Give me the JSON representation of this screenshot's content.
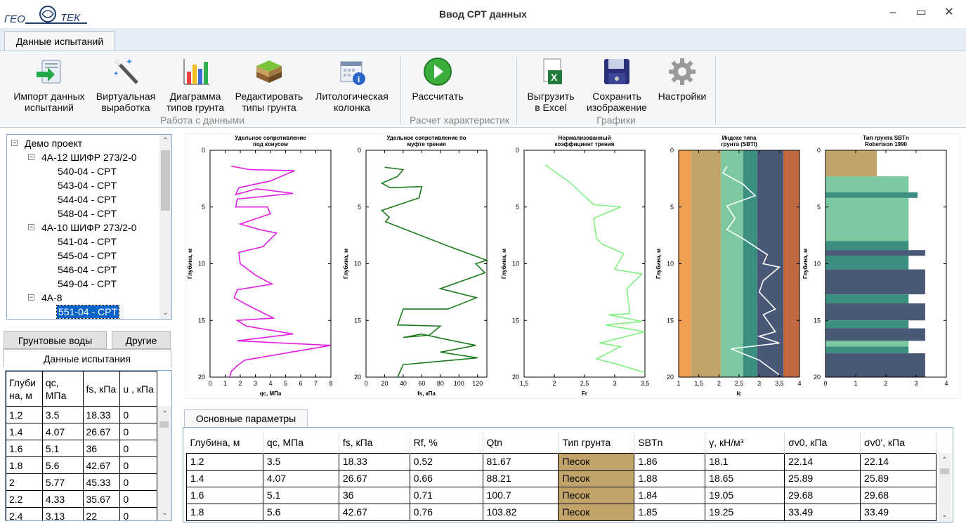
{
  "window": {
    "title": "Ввод CPT данных",
    "logo_text": "ГЕО ТЕК",
    "minimize": "–",
    "maximize": "▭",
    "close": "✕"
  },
  "ribbon": {
    "tab": "Данные испытаний",
    "groups": [
      {
        "label": "Работа с данными"
      },
      {
        "label": "Расчет характеристик"
      },
      {
        "label": "Графики"
      }
    ],
    "buttons": [
      {
        "line1": "Импорт данных",
        "line2": "испытаний",
        "icon": "import-icon"
      },
      {
        "line1": "Виртуальная",
        "line2": "выработка",
        "icon": "magic-wand-icon"
      },
      {
        "line1": "Диаграмма",
        "line2": "типов грунта",
        "icon": "chart-icon"
      },
      {
        "line1": "Редактировать",
        "line2": "типы грунта",
        "icon": "soil-layers-icon"
      },
      {
        "line1": "Литологическая",
        "line2": "колонка",
        "icon": "calendar-info-icon"
      },
      {
        "line1": "Рассчитать",
        "line2": "",
        "icon": "play-icon"
      },
      {
        "line1": "Выгрузить",
        "line2": "в Excel",
        "icon": "excel-icon"
      },
      {
        "line1": "Сохранить",
        "line2": "изображение",
        "icon": "floppy-disk-icon"
      },
      {
        "line1": "Настройки",
        "line2": "",
        "icon": "gear-icon"
      }
    ]
  },
  "tree": {
    "root": "Демо проект",
    "groups": [
      {
        "name": "4А-12 ШИФР 273/2-0",
        "items": [
          "540-04 - CPT",
          "543-04 - CPT",
          "544-04 - CPT",
          "548-04 - CPT"
        ]
      },
      {
        "name": "4А-10 ШИФР 273/2-0",
        "items": [
          "541-04 - CPT",
          "545-04 - CPT",
          "546-04 - CPT",
          "549-04 - CPT"
        ]
      },
      {
        "name": "4А-8",
        "items": [
          "551-04 - CPT"
        ]
      }
    ],
    "selected": "551-04 - CPT"
  },
  "left_tabs": {
    "groundwater": "Грунтовые воды",
    "other": "Другие",
    "test_data": "Данные испытания"
  },
  "left_table": {
    "headers": [
      "Глуби на, м",
      "qc, МПа",
      "fs, кПа",
      "u , кПа"
    ],
    "rows": [
      [
        "1.2",
        "3.5",
        "18.33",
        "0"
      ],
      [
        "1.4",
        "4.07",
        "26.67",
        "0"
      ],
      [
        "1.6",
        "5.1",
        "36",
        "0"
      ],
      [
        "1.8",
        "5.6",
        "42.67",
        "0"
      ],
      [
        "2",
        "5.77",
        "45.33",
        "0"
      ],
      [
        "2.2",
        "4.33",
        "35.67",
        "0"
      ],
      [
        "2.4",
        "3.13",
        "22",
        "0"
      ]
    ]
  },
  "chart_data": [
    {
      "type": "line",
      "title": "Удельное сопротивление под конусом",
      "xlabel": "qc, МПа",
      "ylabel": "Глубина, м",
      "xlim": [
        0,
        8
      ],
      "ylim": [
        0,
        20
      ],
      "xticks": [
        "0",
        "1",
        "2",
        "3",
        "4",
        "5",
        "6",
        "7",
        "8"
      ],
      "yticks": [
        "0",
        "5",
        "10",
        "15",
        "20"
      ],
      "color": "#e31de3",
      "x": [
        1.4,
        2.6,
        5.6,
        4.0,
        1.9,
        1.7,
        3.1,
        5.5,
        1.8,
        1.7,
        3.8,
        4.0,
        2.0,
        3.3,
        4.4,
        3.5,
        1.9,
        2.0,
        3.0,
        4.1,
        1.8,
        1.6,
        2.4,
        4.2,
        1.8,
        2.4,
        5.5,
        1.8,
        8.2,
        2.3,
        1.8,
        1.4,
        1.3
      ],
      "y": [
        1.4,
        1.7,
        1.8,
        2.7,
        3.3,
        3.9,
        3.4,
        3.8,
        4.3,
        5.0,
        5.0,
        5.6,
        6.5,
        7.0,
        7.3,
        8.5,
        9.0,
        10.0,
        11.0,
        11.8,
        12.3,
        13.0,
        13.6,
        14.8,
        15.0,
        15.5,
        16.2,
        16.8,
        17.2,
        18.5,
        19.0,
        19.5,
        20.0
      ]
    },
    {
      "type": "line",
      "title": "Удельное сопротивление по муфте трения",
      "xlabel": "fs, кПа",
      "ylabel": "Глубина, м",
      "xlim": [
        0,
        130
      ],
      "ylim": [
        0,
        20
      ],
      "xticks": [
        "0",
        "20",
        "40",
        "60",
        "80",
        "100",
        "120"
      ],
      "yticks": [
        "0",
        "5",
        "10",
        "15",
        "20"
      ],
      "color": "#1d7a1d",
      "x": [
        20,
        40,
        34,
        17,
        26,
        60,
        57,
        17,
        25,
        21,
        90,
        130,
        118,
        128,
        80,
        119,
        88,
        40,
        34,
        80,
        68,
        40,
        60,
        82,
        118,
        80,
        120,
        40,
        34
      ],
      "y": [
        1.5,
        1.7,
        2.3,
        2.9,
        3.3,
        3.2,
        4.2,
        5.3,
        5.9,
        6.3,
        8.5,
        9.7,
        10.0,
        10.8,
        12.2,
        13.0,
        14.0,
        14.0,
        15.4,
        15.5,
        16.3,
        16.5,
        16.2,
        16.6,
        17.2,
        17.8,
        18.3,
        18.9,
        20.0
      ]
    },
    {
      "type": "line",
      "title": "Нормализованный коэффициент трения",
      "xlabel": "Fr",
      "ylabel": "Глубина, м",
      "xlim": [
        1.5,
        3.5
      ],
      "ylim": [
        0,
        20
      ],
      "xticks": [
        "1,5",
        "2",
        "2,5",
        "3",
        "3,5"
      ],
      "yticks": [
        "0",
        "5",
        "10",
        "15",
        "20"
      ],
      "color": "#80f080",
      "x": [
        1.85,
        2.25,
        2.65,
        3.1,
        2.65,
        2.7,
        2.8,
        3.15,
        3.0,
        3.45,
        3.2,
        3.25,
        2.9,
        3.45,
        2.85,
        3.5,
        2.75,
        3.1,
        2.7,
        3.0,
        3.5
      ],
      "y": [
        1.3,
        2.8,
        4.8,
        5.0,
        6.0,
        7.8,
        8.3,
        9.1,
        10.5,
        10.9,
        12.2,
        14.4,
        14.5,
        15.1,
        15.4,
        16.0,
        17.0,
        17.3,
        18.4,
        18.8,
        19.6
      ]
    },
    {
      "type": "line",
      "title": "Индекс типа грунта (SBTI)",
      "xlabel": "Ic",
      "ylabel": "Глубина, м",
      "xlim": [
        1,
        4
      ],
      "ylim": [
        0,
        20
      ],
      "xticks": [
        "1",
        "1,5",
        "2",
        "2,5",
        "3",
        "3,5",
        "4"
      ],
      "yticks": [
        "0",
        "5",
        "10",
        "15",
        "20"
      ],
      "color": "#ffffff",
      "bands": [
        {
          "from": 1.0,
          "to": 1.31,
          "color": "#f0a050"
        },
        {
          "from": 1.31,
          "to": 2.05,
          "color": "#c2a46a"
        },
        {
          "from": 2.05,
          "to": 2.6,
          "color": "#7cc8a0"
        },
        {
          "from": 2.6,
          "to": 2.95,
          "color": "#3b8f80"
        },
        {
          "from": 2.95,
          "to": 3.6,
          "color": "#4a5878"
        },
        {
          "from": 3.6,
          "to": 4.0,
          "color": "#c06840"
        }
      ],
      "x": [
        2.2,
        2.1,
        2.6,
        2.9,
        2.2,
        2.4,
        2.2,
        2.6,
        2.9,
        3.2,
        3.1,
        3.5,
        3.1,
        3.0,
        3.4,
        3.1,
        3.4,
        3.0,
        3.5,
        2.3,
        3.0,
        3.5
      ],
      "y": [
        1.4,
        2.0,
        3.0,
        4.0,
        4.9,
        6.0,
        7.0,
        7.8,
        8.5,
        9.2,
        10.0,
        10.3,
        11.5,
        12.5,
        14.0,
        14.5,
        16.0,
        16.4,
        17.0,
        17.5,
        18.5,
        19.8
      ]
    },
    {
      "type": "bar",
      "title": "Тип грунта SBTn Robertson 1990",
      "xlabel": "",
      "ylabel": "Глубина, м",
      "xlim": [
        0,
        4
      ],
      "ylim": [
        0,
        20
      ],
      "xticks": [
        "0",
        "1",
        "2",
        "3",
        "4"
      ],
      "yticks": [
        "0",
        "5",
        "10",
        "15",
        "20"
      ],
      "layers": [
        {
          "from": 0.0,
          "to": 2.3,
          "width": 1.7,
          "color": "#c2a46a"
        },
        {
          "from": 2.3,
          "to": 3.7,
          "width": 2.75,
          "color": "#7cc8a0"
        },
        {
          "from": 3.7,
          "to": 4.2,
          "width": 3.05,
          "color": "#3b8f80"
        },
        {
          "from": 4.2,
          "to": 8.0,
          "width": 2.75,
          "color": "#7cc8a0"
        },
        {
          "from": 8.0,
          "to": 8.8,
          "width": 2.75,
          "color": "#3b8f80"
        },
        {
          "from": 8.8,
          "to": 9.3,
          "width": 3.3,
          "color": "#4a5878"
        },
        {
          "from": 9.3,
          "to": 10.5,
          "width": 2.75,
          "color": "#3b8f80"
        },
        {
          "from": 10.5,
          "to": 12.7,
          "width": 3.3,
          "color": "#4a5878"
        },
        {
          "from": 12.7,
          "to": 13.5,
          "width": 2.75,
          "color": "#3b8f80"
        },
        {
          "from": 13.5,
          "to": 15.0,
          "width": 3.3,
          "color": "#4a5878"
        },
        {
          "from": 15.0,
          "to": 15.7,
          "width": 2.75,
          "color": "#3b8f80"
        },
        {
          "from": 15.7,
          "to": 16.8,
          "width": 3.3,
          "color": "#4a5878"
        },
        {
          "from": 16.8,
          "to": 17.3,
          "width": 2.75,
          "color": "#7cc8a0"
        },
        {
          "from": 17.3,
          "to": 17.9,
          "width": 2.75,
          "color": "#3b8f80"
        },
        {
          "from": 17.9,
          "to": 20.0,
          "width": 3.3,
          "color": "#4a5878"
        }
      ]
    }
  ],
  "bottom": {
    "tab": "Основные параметры",
    "headers": [
      "Глубина, м",
      "qc, МПа",
      "fs, кПа",
      "Rf, %",
      "Qtn",
      "Тип грунта",
      "SBTn",
      "γ, кН/м³",
      "σv0, кПа",
      "σv0', кПа"
    ],
    "rows": [
      [
        "1.2",
        "3.5",
        "18.33",
        "0.52",
        "81.67",
        "Песок",
        "1.86",
        "18.1",
        "22.14",
        "22.14"
      ],
      [
        "1.4",
        "4.07",
        "26.67",
        "0.66",
        "88.21",
        "Песок",
        "1.88",
        "18.65",
        "25.89",
        "25.89"
      ],
      [
        "1.6",
        "5.1",
        "36",
        "0.71",
        "100.7",
        "Песок",
        "1.84",
        "19.05",
        "29.68",
        "29.68"
      ],
      [
        "1.8",
        "5.6",
        "42.67",
        "0.76",
        "103.82",
        "Песок",
        "1.85",
        "19.25",
        "33.49",
        "33.49"
      ]
    ],
    "soil_color": "#c2a46a"
  }
}
